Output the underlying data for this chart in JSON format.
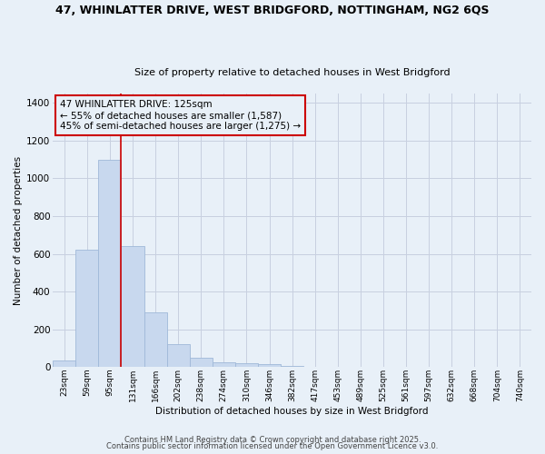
{
  "title1": "47, WHINLATTER DRIVE, WEST BRIDGFORD, NOTTINGHAM, NG2 6QS",
  "title2": "Size of property relative to detached houses in West Bridgford",
  "xlabel": "Distribution of detached houses by size in West Bridgford",
  "ylabel": "Number of detached properties",
  "categories": [
    "23sqm",
    "59sqm",
    "95sqm",
    "131sqm",
    "166sqm",
    "202sqm",
    "238sqm",
    "274sqm",
    "310sqm",
    "346sqm",
    "382sqm",
    "417sqm",
    "453sqm",
    "489sqm",
    "525sqm",
    "561sqm",
    "597sqm",
    "632sqm",
    "668sqm",
    "704sqm",
    "740sqm"
  ],
  "values": [
    35,
    620,
    1100,
    640,
    290,
    120,
    50,
    25,
    20,
    15,
    5,
    2,
    0,
    0,
    0,
    0,
    0,
    0,
    0,
    0,
    0
  ],
  "bar_color": "#c8d8ee",
  "bar_edge_color": "#a0b8d8",
  "vline_color": "#cc0000",
  "annotation_text": "47 WHINLATTER DRIVE: 125sqm\n← 55% of detached houses are smaller (1,587)\n45% of semi-detached houses are larger (1,275) →",
  "annotation_box_color": "#cc0000",
  "background_color": "#e8f0f8",
  "grid_color": "#c8d0e0",
  "ylim": [
    0,
    1450
  ],
  "yticks": [
    0,
    200,
    400,
    600,
    800,
    1000,
    1200,
    1400
  ],
  "footer1": "Contains HM Land Registry data © Crown copyright and database right 2025.",
  "footer2": "Contains public sector information licensed under the Open Government Licence v3.0."
}
